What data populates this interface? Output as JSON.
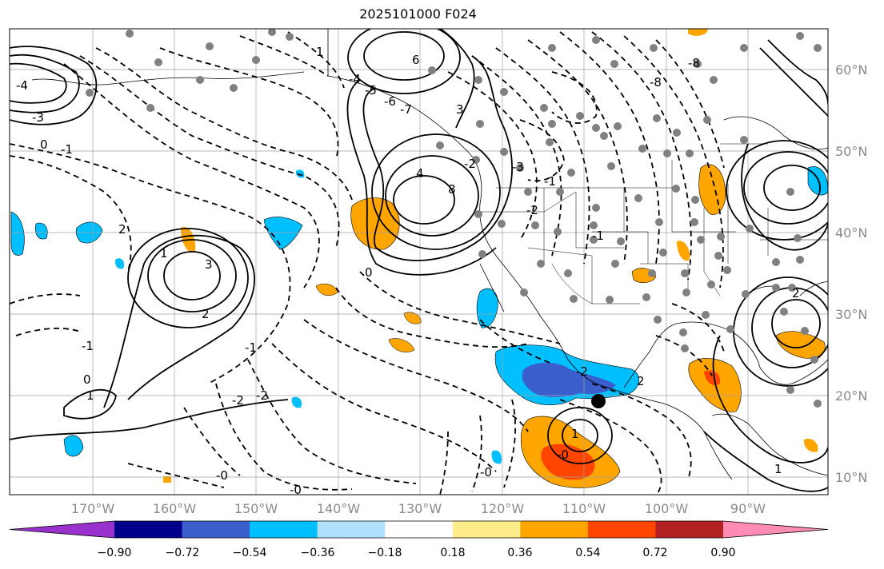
{
  "title": "2025101000 F024",
  "map": {
    "lat_labels": [
      "60°N",
      "50°N",
      "40°N",
      "30°N",
      "20°N",
      "10°N"
    ],
    "lon_labels": [
      "170°W",
      "160°W",
      "150°W",
      "140°W",
      "130°W",
      "120°W",
      "110°W",
      "100°W",
      "90°W"
    ],
    "contour_labels": [
      {
        "text": "-4"
      },
      {
        "text": "-5"
      },
      {
        "text": "-6"
      },
      {
        "text": "-7"
      },
      {
        "text": "-8"
      },
      {
        "text": "3"
      },
      {
        "text": "4"
      },
      {
        "text": "6"
      },
      {
        "text": "8"
      },
      {
        "text": "-3"
      },
      {
        "text": "-4"
      },
      {
        "text": "-3"
      },
      {
        "text": "-2"
      },
      {
        "text": "-1"
      },
      {
        "text": "0"
      },
      {
        "text": "1"
      },
      {
        "text": "2"
      },
      {
        "text": "-1"
      },
      {
        "text": "-2"
      },
      {
        "text": "0"
      },
      {
        "text": "-0"
      },
      {
        "text": "-1"
      },
      {
        "text": "0"
      },
      {
        "text": "-0"
      },
      {
        "text": "-1"
      },
      {
        "text": "1"
      },
      {
        "text": "2"
      },
      {
        "text": "3"
      },
      {
        "text": "-1"
      },
      {
        "text": "-2"
      },
      {
        "text": "-0"
      },
      {
        "text": "-8"
      },
      {
        "text": "-2"
      },
      {
        "text": "2"
      },
      {
        "text": "1"
      },
      {
        "text": "1"
      },
      {
        "text": "-2"
      },
      {
        "text": "2"
      },
      {
        "text": "1"
      },
      {
        "text": "-0"
      }
    ]
  },
  "colorbar": {
    "tick_labels": [
      "−0.90",
      "−0.72",
      "−0.54",
      "−0.36",
      "−0.18",
      "0.18",
      "0.36",
      "0.54",
      "0.72",
      "0.90"
    ],
    "colors": [
      "#9932cc",
      "#00008b",
      "#3a5fcd",
      "#00bfff",
      "#b0e2ff",
      "#ffffff",
      "#ffec8b",
      "#ffa500",
      "#ff4500",
      "#b22222",
      "#ff8cb4"
    ]
  }
}
